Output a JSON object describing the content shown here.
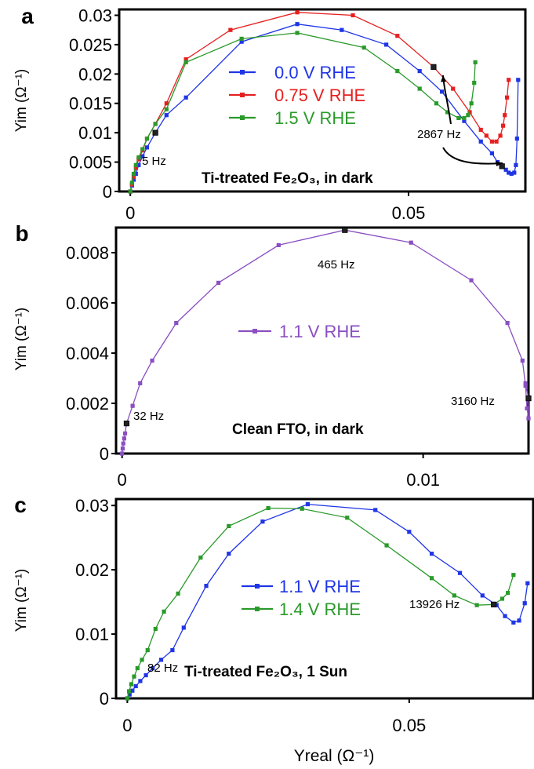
{
  "chart_data": [
    {
      "type": "line",
      "panel_label": "a",
      "ylabel": "Yim (Ω⁻¹)",
      "xlabel": "",
      "xlim": [
        -0.002,
        0.071
      ],
      "ylim": [
        0,
        0.031
      ],
      "x_ticks": [
        0,
        0.05
      ],
      "x_tick_labels": [
        "0",
        "0.05"
      ],
      "y_ticks": [
        0,
        0.005,
        0.01,
        0.015,
        0.02,
        0.025,
        0.03
      ],
      "y_tick_labels": [
        "0",
        "0.005",
        "0.01",
        "0.015",
        "0.02",
        "0.025",
        "0.03"
      ],
      "legend_position": "top-center",
      "series": [
        {
          "name": "0.0 V RHE",
          "color": "#1f35e6",
          "x": [
            0.0,
            0.0003,
            0.0006,
            0.001,
            0.0015,
            0.0022,
            0.003,
            0.0045,
            0.0065,
            0.01,
            0.02,
            0.03,
            0.038,
            0.046,
            0.052,
            0.056,
            0.06,
            0.063,
            0.065,
            0.066,
            0.0668,
            0.0675,
            0.068,
            0.0685,
            0.069,
            0.0693,
            0.0695,
            0.0697
          ],
          "y": [
            0.0,
            0.001,
            0.002,
            0.003,
            0.0045,
            0.006,
            0.0075,
            0.01,
            0.013,
            0.016,
            0.0255,
            0.0285,
            0.0275,
            0.025,
            0.0205,
            0.017,
            0.012,
            0.0085,
            0.0065,
            0.005,
            0.0043,
            0.0037,
            0.0032,
            0.003,
            0.0032,
            0.0045,
            0.009,
            0.019
          ]
        },
        {
          "name": "0.75 V RHE",
          "color": "#e62020",
          "x": [
            0.0,
            0.0003,
            0.0006,
            0.001,
            0.0015,
            0.0022,
            0.003,
            0.0045,
            0.0065,
            0.01,
            0.018,
            0.03,
            0.04,
            0.048,
            0.0545,
            0.058,
            0.061,
            0.063,
            0.064,
            0.065,
            0.0658,
            0.0665,
            0.067,
            0.0673,
            0.0677,
            0.068
          ],
          "y": [
            0.0,
            0.0012,
            0.0025,
            0.004,
            0.0055,
            0.007,
            0.009,
            0.0115,
            0.015,
            0.0225,
            0.0275,
            0.0305,
            0.03,
            0.0265,
            0.0212,
            0.0175,
            0.0135,
            0.0105,
            0.0095,
            0.0085,
            0.0085,
            0.0095,
            0.0112,
            0.013,
            0.016,
            0.019
          ]
        },
        {
          "name": "1.5 V RHE",
          "color": "#2a9a2a",
          "x": [
            0.0,
            0.0003,
            0.0006,
            0.001,
            0.0015,
            0.0022,
            0.003,
            0.0045,
            0.0065,
            0.01,
            0.02,
            0.03,
            0.042,
            0.048,
            0.052,
            0.055,
            0.057,
            0.059,
            0.06,
            0.0607,
            0.0613,
            0.0618,
            0.062
          ],
          "y": [
            0.0,
            0.0015,
            0.003,
            0.0045,
            0.0058,
            0.0072,
            0.009,
            0.0115,
            0.014,
            0.022,
            0.026,
            0.027,
            0.0245,
            0.0205,
            0.0175,
            0.015,
            0.0135,
            0.0125,
            0.0125,
            0.013,
            0.015,
            0.0185,
            0.022
          ]
        }
      ],
      "annotations": [
        "5 Hz",
        "2867 Hz",
        "Ti-treated Fe₂O₃, in dark"
      ]
    },
    {
      "type": "line",
      "panel_label": "b",
      "ylabel": "Yim (Ω⁻¹)",
      "xlabel": "",
      "xlim": [
        -0.0002,
        0.0135
      ],
      "ylim": [
        0,
        0.009
      ],
      "x_ticks": [
        0,
        0.01
      ],
      "x_tick_labels": [
        "0",
        "0.01"
      ],
      "y_ticks": [
        0,
        0.002,
        0.004,
        0.006,
        0.008
      ],
      "y_tick_labels": [
        "0",
        "0.002",
        "0.004",
        "0.006",
        "0.008"
      ],
      "legend_position": "center",
      "series": [
        {
          "name": "1.1 V RHE",
          "color": "#8a4fc2",
          "x": [
            0.0,
            2e-05,
            4e-05,
            7e-05,
            0.0001,
            0.00015,
            0.00035,
            0.0006,
            0.001,
            0.0018,
            0.0032,
            0.0052,
            0.0074,
            0.0096,
            0.0116,
            0.0128,
            0.0133,
            0.0134,
            0.01345,
            0.0135,
            0.0135,
            0.0134
          ],
          "y": [
            0.0,
            0.0002,
            0.0004,
            0.0006,
            0.0008,
            0.0012,
            0.0019,
            0.0028,
            0.0037,
            0.0052,
            0.0068,
            0.0083,
            0.0089,
            0.0084,
            0.0069,
            0.0052,
            0.0037,
            0.0027,
            0.0018,
            0.0014,
            0.0022,
            0.0028
          ]
        }
      ],
      "annotations": [
        "32 Hz",
        "465 Hz",
        "3160 Hz",
        "Clean FTO, in dark"
      ]
    },
    {
      "type": "line",
      "panel_label": "c",
      "ylabel": "Yim (Ω⁻¹)",
      "xlabel": "Yreal (Ω⁻¹)",
      "xlim": [
        -0.002,
        0.072
      ],
      "ylim": [
        0,
        0.031
      ],
      "x_ticks": [
        0,
        0.05
      ],
      "x_tick_labels": [
        "0",
        "0.05"
      ],
      "y_ticks": [
        0,
        0.01,
        0.02,
        0.03
      ],
      "y_tick_labels": [
        "0",
        "0.01",
        "0.02",
        "0.03"
      ],
      "legend_position": "center",
      "series": [
        {
          "name": "1.1 V RHE",
          "color": "#1f35e6",
          "x": [
            0.0,
            0.0004,
            0.0009,
            0.0015,
            0.0023,
            0.0033,
            0.0045,
            0.006,
            0.008,
            0.01,
            0.014,
            0.018,
            0.024,
            0.032,
            0.044,
            0.05,
            0.054,
            0.059,
            0.063,
            0.0655,
            0.067,
            0.0685,
            0.0695,
            0.0705,
            0.071
          ],
          "y": [
            0.0,
            0.0006,
            0.0012,
            0.0019,
            0.0027,
            0.0036,
            0.0047,
            0.006,
            0.0075,
            0.011,
            0.0175,
            0.0225,
            0.0275,
            0.0302,
            0.0293,
            0.0259,
            0.0225,
            0.0195,
            0.016,
            0.0145,
            0.0128,
            0.0118,
            0.0121,
            0.0148,
            0.0179
          ]
        },
        {
          "name": "1.4 V RHE",
          "color": "#2a9a2a",
          "x": [
            0.0,
            0.0003,
            0.0007,
            0.0012,
            0.0018,
            0.0026,
            0.0036,
            0.005,
            0.0065,
            0.009,
            0.013,
            0.018,
            0.025,
            0.031,
            0.039,
            0.046,
            0.054,
            0.058,
            0.062,
            0.065,
            0.0665,
            0.0675,
            0.0685
          ],
          "y": [
            0.0,
            0.0011,
            0.0022,
            0.0034,
            0.0047,
            0.006,
            0.0075,
            0.0108,
            0.0135,
            0.0163,
            0.0219,
            0.0268,
            0.0296,
            0.0295,
            0.0281,
            0.0238,
            0.0187,
            0.016,
            0.0145,
            0.0146,
            0.0155,
            0.0164,
            0.0192
          ]
        }
      ],
      "annotations": [
        "82 Hz",
        "13926 Hz",
        "Ti-treated Fe₂O₃, 1 Sun"
      ]
    }
  ]
}
